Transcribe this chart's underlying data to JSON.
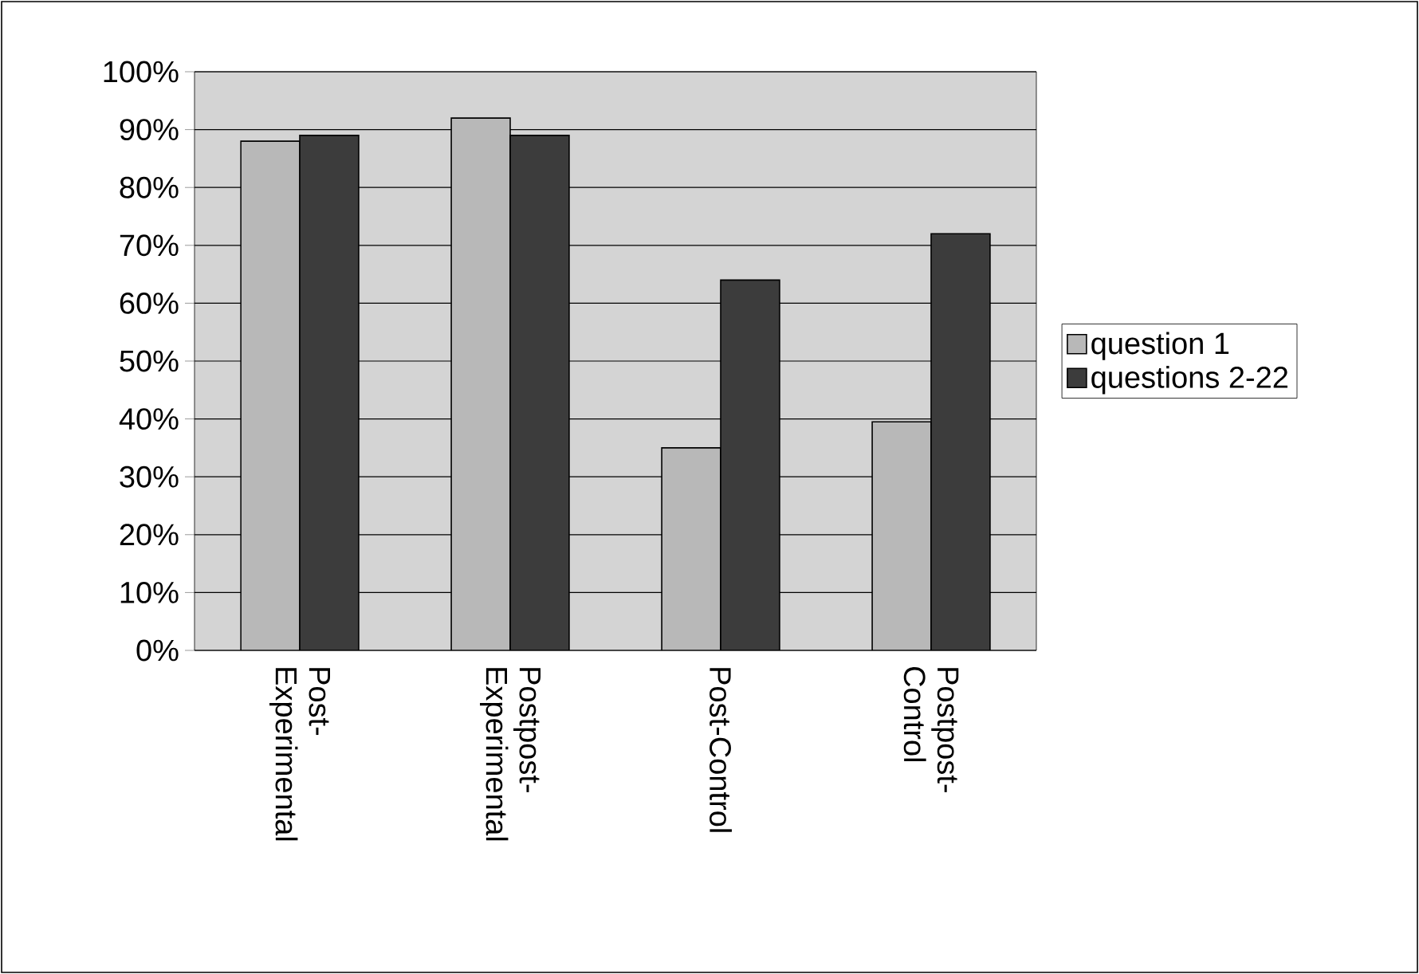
{
  "chart_data": {
    "type": "bar",
    "categories": [
      "Post-Experimental",
      "Postpost-Experimental",
      "Post-Control",
      "Postpost-Control"
    ],
    "series": [
      {
        "name": "question 1",
        "color": "#b8b8b8",
        "values": [
          88,
          92,
          35,
          39.5
        ]
      },
      {
        "name": "questions 2-22",
        "color": "#3c3c3c",
        "values": [
          89,
          89,
          64,
          72
        ]
      }
    ],
    "ylim": [
      0,
      100
    ],
    "yticks": [
      {
        "value": 0,
        "label": "0%"
      },
      {
        "value": 10,
        "label": "10%"
      },
      {
        "value": 20,
        "label": "20%"
      },
      {
        "value": 30,
        "label": "30%"
      },
      {
        "value": 40,
        "label": "40%"
      },
      {
        "value": 50,
        "label": "50%"
      },
      {
        "value": 60,
        "label": "60%"
      },
      {
        "value": 70,
        "label": "70%"
      },
      {
        "value": 80,
        "label": "80%"
      },
      {
        "value": 90,
        "label": "90%"
      },
      {
        "value": 100,
        "label": "100%"
      }
    ],
    "grid": "y",
    "legend": "right"
  }
}
